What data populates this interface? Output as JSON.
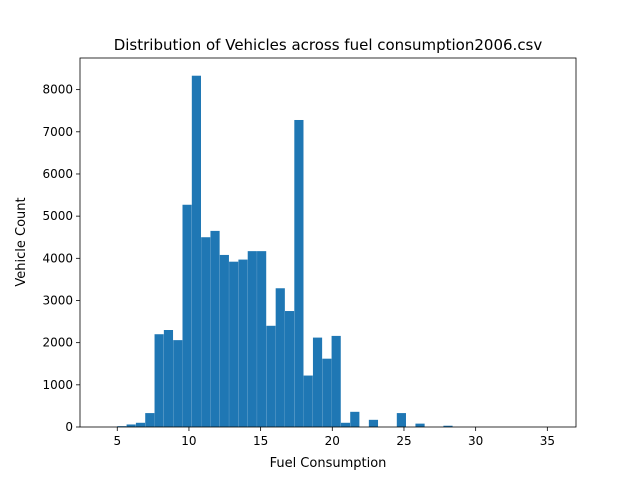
{
  "chart_data": {
    "type": "bar",
    "title": "Distribution of Vehicles across fuel consumption2006.csv",
    "xlabel": "Fuel Consumption",
    "ylabel": "Vehicle Count",
    "xlim": [
      2.4,
      37.0
    ],
    "ylim": [
      0,
      8750
    ],
    "x_ticks": [
      5,
      10,
      15,
      20,
      25,
      30,
      35
    ],
    "y_ticks": [
      0,
      1000,
      2000,
      3000,
      4000,
      5000,
      6000,
      7000,
      8000
    ],
    "bar_color": "#1f77b4",
    "bin_width": 0.64,
    "bins": [
      {
        "x": 5.0,
        "value": 20
      },
      {
        "x": 5.65,
        "value": 60
      },
      {
        "x": 6.3,
        "value": 100
      },
      {
        "x": 6.95,
        "value": 330
      },
      {
        "x": 7.6,
        "value": 2200
      },
      {
        "x": 8.25,
        "value": 2300
      },
      {
        "x": 8.9,
        "value": 2060
      },
      {
        "x": 9.55,
        "value": 5270
      },
      {
        "x": 10.2,
        "value": 8330
      },
      {
        "x": 10.85,
        "value": 4500
      },
      {
        "x": 11.5,
        "value": 4650
      },
      {
        "x": 12.15,
        "value": 4080
      },
      {
        "x": 12.8,
        "value": 3920
      },
      {
        "x": 13.45,
        "value": 3970
      },
      {
        "x": 14.1,
        "value": 4170
      },
      {
        "x": 14.75,
        "value": 4170
      },
      {
        "x": 15.4,
        "value": 2400
      },
      {
        "x": 16.05,
        "value": 3290
      },
      {
        "x": 16.7,
        "value": 2750
      },
      {
        "x": 17.35,
        "value": 7280
      },
      {
        "x": 18.0,
        "value": 1220
      },
      {
        "x": 18.65,
        "value": 2120
      },
      {
        "x": 19.3,
        "value": 1620
      },
      {
        "x": 19.95,
        "value": 2160
      },
      {
        "x": 20.6,
        "value": 100
      },
      {
        "x": 21.25,
        "value": 360
      },
      {
        "x": 21.9,
        "value": 0
      },
      {
        "x": 22.55,
        "value": 170
      },
      {
        "x": 23.2,
        "value": 0
      },
      {
        "x": 23.85,
        "value": 0
      },
      {
        "x": 24.5,
        "value": 330
      },
      {
        "x": 25.15,
        "value": 0
      },
      {
        "x": 25.8,
        "value": 80
      },
      {
        "x": 26.45,
        "value": 0
      },
      {
        "x": 27.1,
        "value": 0
      },
      {
        "x": 27.75,
        "value": 30
      }
    ]
  }
}
